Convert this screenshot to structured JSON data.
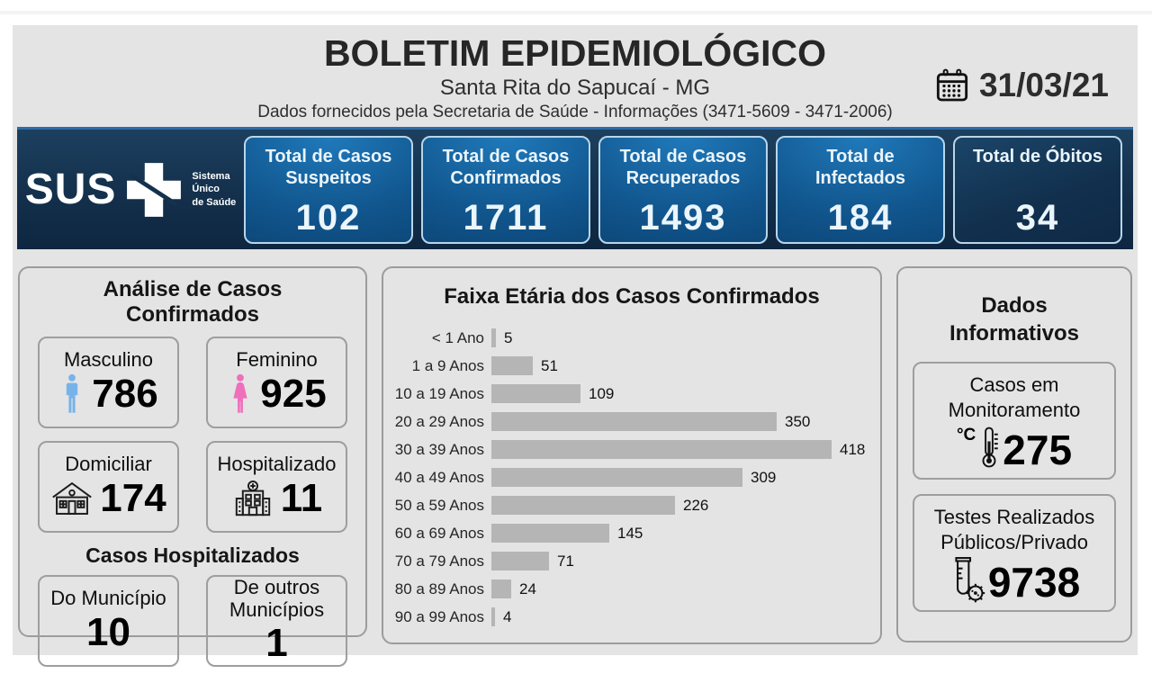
{
  "header": {
    "title": "BOLETIM EPIDEMIOLÓGICO",
    "subtitle": "Santa Rita do Sapucaí - MG",
    "info_line": "Dados fornecidos pela Secretaria de Saúde - Informações (3471-5609 - 3471-2006)",
    "date": "31/03/21",
    "date_icon": "calendar-icon"
  },
  "sus_bar": {
    "logo_text": "SUS",
    "logo_caption_lines": [
      "Sistema",
      "Único",
      "de Saúde"
    ],
    "stats": [
      {
        "label": "Total de Casos Suspeitos",
        "value": "102",
        "variant": "blue"
      },
      {
        "label": "Total de Casos Confirmados",
        "value": "1711",
        "variant": "blue"
      },
      {
        "label": "Total de Casos Recuperados",
        "value": "1493",
        "variant": "blue"
      },
      {
        "label": "Total de Infectados",
        "value": "184",
        "variant": "blue"
      },
      {
        "label": "Total de Óbitos",
        "value": "34",
        "variant": "navy"
      }
    ]
  },
  "analysis_panel": {
    "title": "Análise de Casos Confirmados",
    "cards": [
      {
        "label": "Masculino",
        "value": "786",
        "icon": "male-icon"
      },
      {
        "label": "Feminino",
        "value": "925",
        "icon": "female-icon"
      },
      {
        "label": "Domiciliar",
        "value": "174",
        "icon": "house-icon"
      },
      {
        "label": "Hospitalizado",
        "value": "11",
        "icon": "hospital-icon"
      }
    ],
    "hospitalized": {
      "title": "Casos Hospitalizados",
      "cards": [
        {
          "label": "Do Município",
          "value": "10"
        },
        {
          "label": "De outros Municípios",
          "value": "1"
        }
      ]
    }
  },
  "chart_data": {
    "type": "bar",
    "orientation": "horizontal",
    "title": "Faixa Etária dos Casos Confirmados",
    "categories": [
      "< 1 Ano",
      "1 a 9 Anos",
      "10 a 19 Anos",
      "20 a 29 Anos",
      "30 a 39 Anos",
      "40 a 49 Anos",
      "50 a 59 Anos",
      "60 a 69 Anos",
      "70 a 79 Anos",
      "80 a 89 Anos",
      "90 a 99 Anos"
    ],
    "values": [
      5,
      51,
      109,
      350,
      418,
      309,
      226,
      145,
      71,
      24,
      4
    ],
    "xlim": [
      0,
      418
    ],
    "bar_color": "#b5b5b5",
    "value_labels": true,
    "grid": false,
    "legend": false
  },
  "info_panel": {
    "title": "Dados Informativos",
    "cards": [
      {
        "label": "Casos em Monitoramento",
        "value": "275",
        "icon": "thermometer-icon",
        "icon_prefix": "°C"
      },
      {
        "label": "Testes Realizados Públicos/Privado",
        "value": "9738",
        "icon": "test-tube-icon"
      }
    ]
  },
  "colors": {
    "bulletin_bg": "#e4e4e4",
    "navy_bar": "#14314d",
    "stat_box_blue_top": "#2079ba",
    "stat_box_blue_bottom": "#0b4271",
    "stat_box_border": "#b7d6eb",
    "stat_box_navy": "#12314f",
    "strip_accent_line": "#2b6da8",
    "male_icon": "#77b3e8",
    "female_icon": "#ef6fbb",
    "chart_bar": "#b5b5b5",
    "panel_border": "#9c9c9c",
    "text_dark": "#262626"
  }
}
